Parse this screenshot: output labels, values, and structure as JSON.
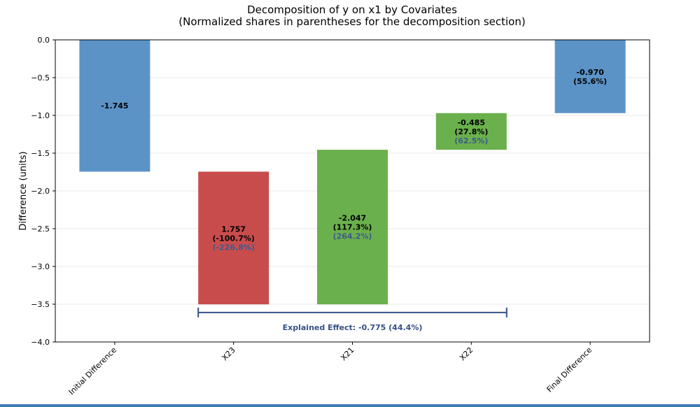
{
  "chart_data": {
    "type": "bar",
    "subtype": "waterfall",
    "title": "Decomposition of y on x1 by Covariates",
    "subtitle": "(Normalized shares in parentheses for the decomposition section)",
    "xlabel": "",
    "ylabel": "Difference (units)",
    "ylim": [
      -4.0,
      0.0
    ],
    "yticks": [
      "0.0",
      "−0.5",
      "−1.0",
      "−1.5",
      "−2.0",
      "−2.5",
      "−3.0",
      "−3.5",
      "−4.0"
    ],
    "ytick_values": [
      0.0,
      -0.5,
      -1.0,
      -1.5,
      -2.0,
      -2.5,
      -3.0,
      -3.5,
      -4.0
    ],
    "grid": "horizontal",
    "categories": [
      "Initial Difference",
      "X23",
      "X21",
      "X22",
      "Final Difference"
    ],
    "bars": [
      {
        "category": "Initial Difference",
        "start": 0.0,
        "end": -1.745,
        "color": "#5B93C7",
        "value_label": "-1.745",
        "share_label": "",
        "norm_label": ""
      },
      {
        "category": "X23",
        "start": -1.745,
        "end": -3.502,
        "color": "#C94C4C",
        "value_label": "1.757",
        "share_label": "(-100.7%)",
        "norm_label": "(-226.8%)"
      },
      {
        "category": "X21",
        "start": -3.502,
        "end": -1.455,
        "color": "#6AB04C",
        "value_label": "-2.047",
        "share_label": "(117.3%)",
        "norm_label": "(264.2%)"
      },
      {
        "category": "X22",
        "start": -1.455,
        "end": -0.97,
        "color": "#6AB04C",
        "value_label": "-0.485",
        "share_label": "(27.8%)",
        "norm_label": "(62.5%)"
      },
      {
        "category": "Final Difference",
        "start": 0.0,
        "end": -0.97,
        "color": "#5B93C7",
        "value_label": "-0.970",
        "share_label": "(55.6%)",
        "norm_label": ""
      }
    ],
    "bracket": {
      "from_category": "X23",
      "to_category": "X22",
      "y": -3.61,
      "label": "Explained Effect: -0.775 (44.4%)",
      "color": "#34508A"
    },
    "norm_label_color": "#3F5A8C"
  },
  "colors": {
    "bottom_rule": "#3E7CB8",
    "grid": "#E8E8E8",
    "axis": "#000000"
  }
}
